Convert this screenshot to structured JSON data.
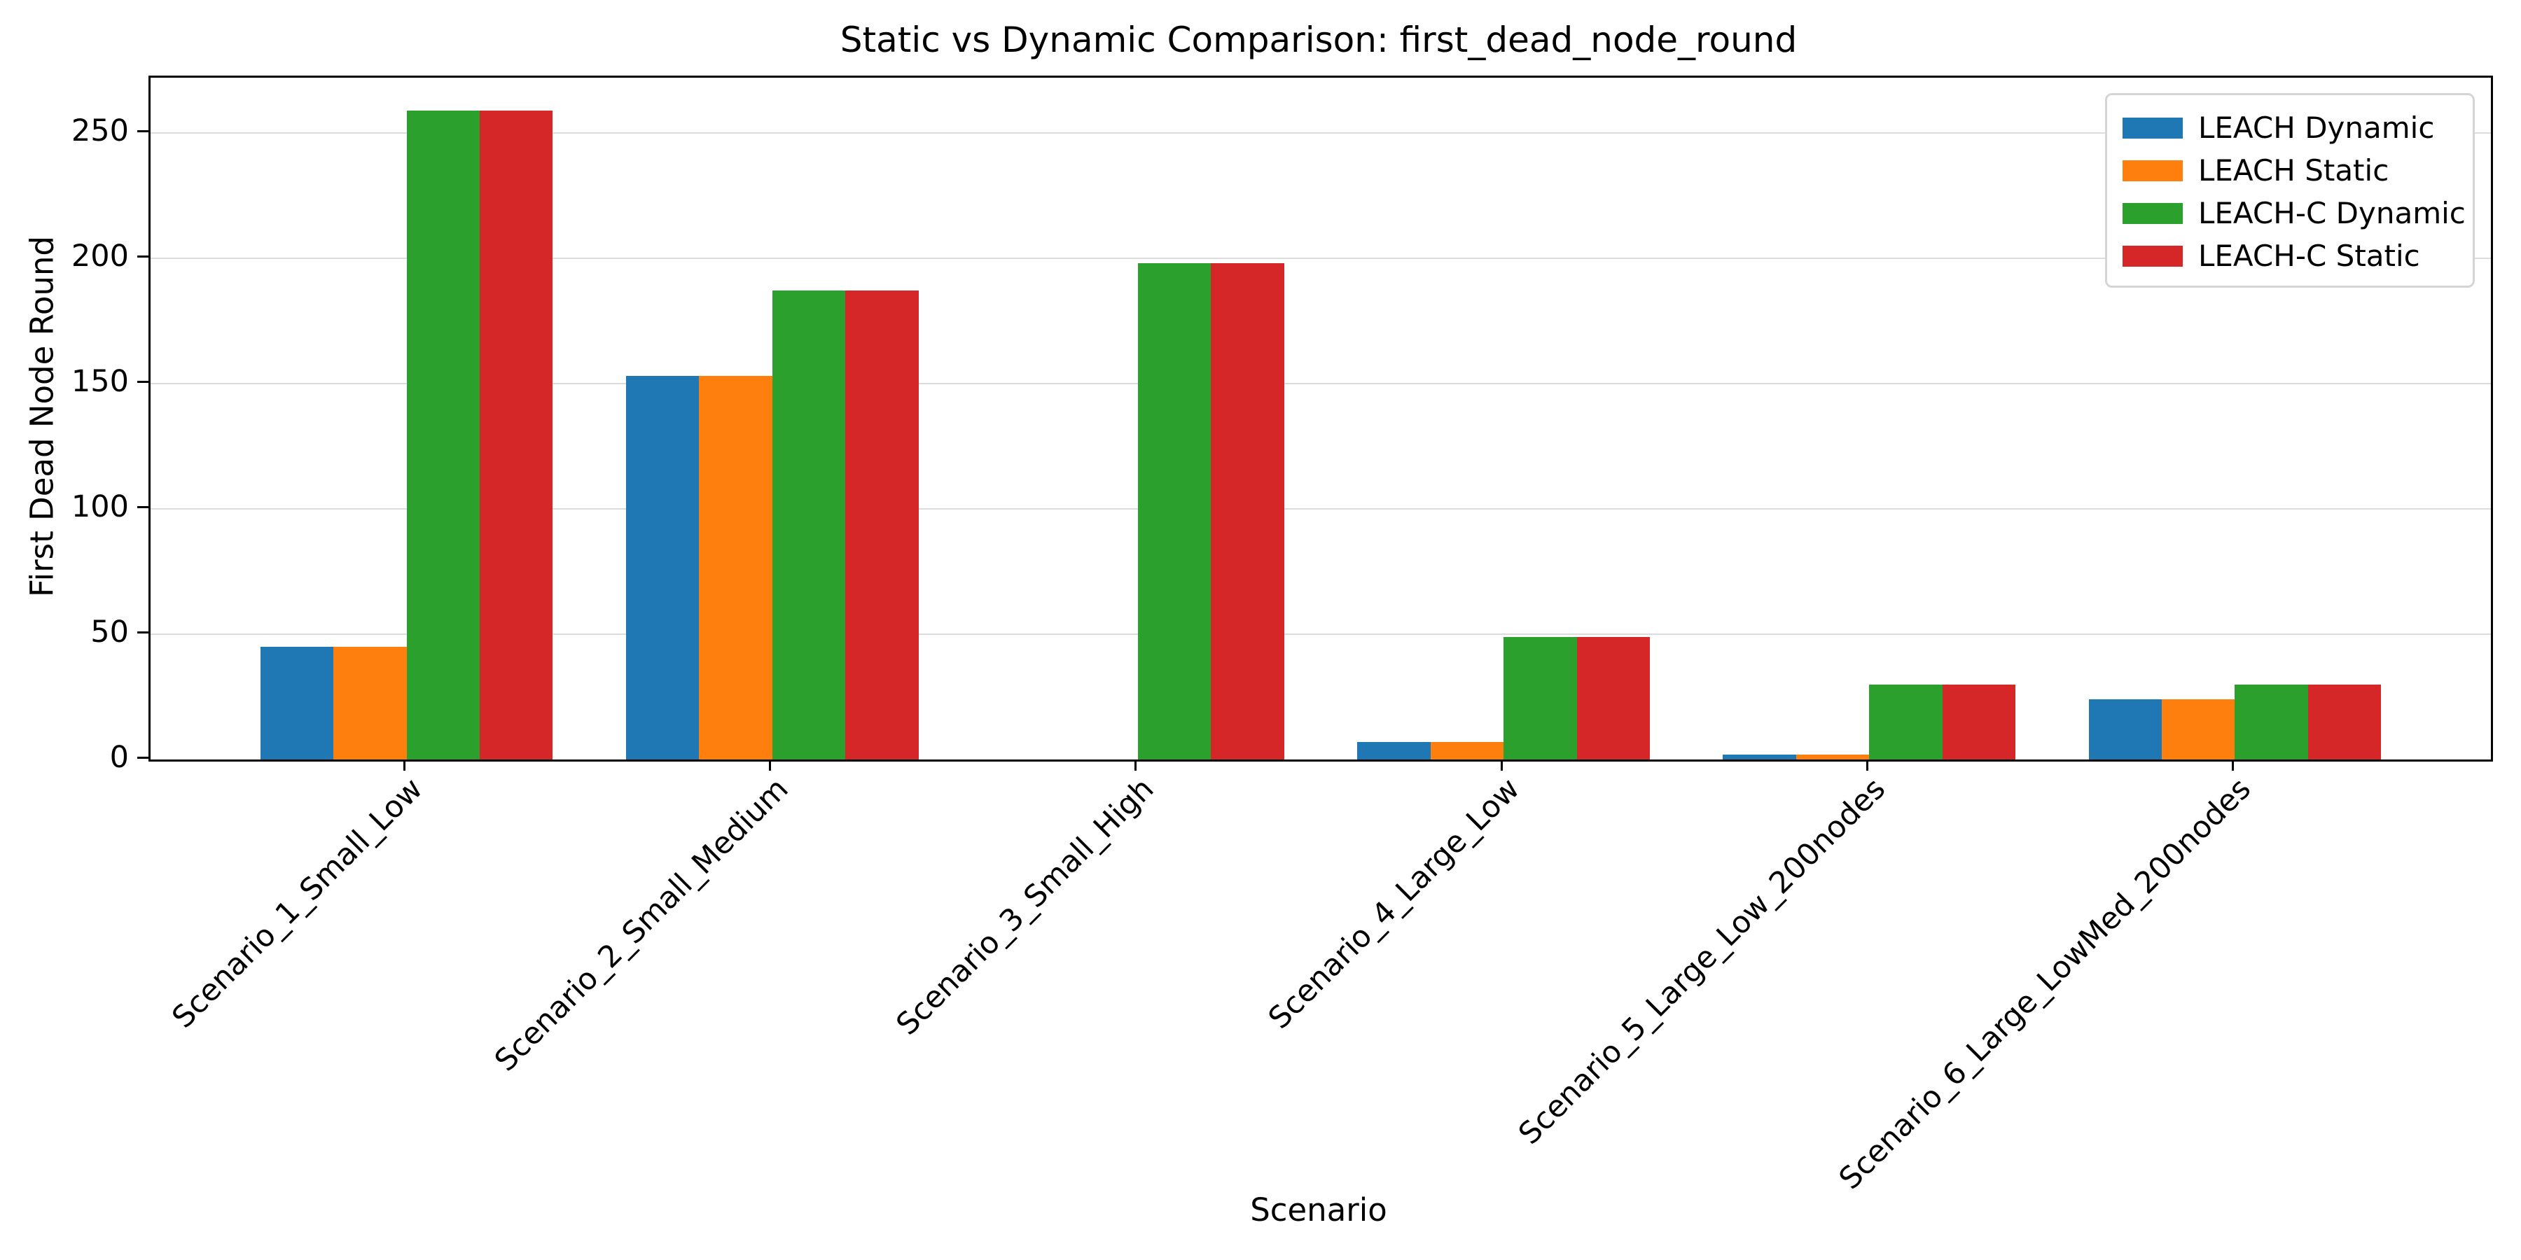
{
  "chart_data": {
    "type": "bar",
    "title": "Static vs Dynamic Comparison: first_dead_node_round",
    "xlabel": "Scenario",
    "ylabel": "First Dead Node Round",
    "categories": [
      "Scenario_1_Small_Low",
      "Scenario_2_Small_Medium",
      "Scenario_3_Small_High",
      "Scenario_4_Large_Low",
      "Scenario_5_Large_Low_200nodes",
      "Scenario_6_Large_LowMed_200nodes"
    ],
    "series": [
      {
        "name": "LEACH Dynamic",
        "color": "#1f77b4",
        "values": [
          45,
          153,
          0,
          7,
          2,
          24
        ]
      },
      {
        "name": "LEACH Static",
        "color": "#ff7f0e",
        "values": [
          45,
          153,
          0,
          7,
          2,
          24
        ]
      },
      {
        "name": "LEACH-C Dynamic",
        "color": "#2ca02c",
        "values": [
          259,
          187,
          198,
          49,
          30,
          30
        ]
      },
      {
        "name": "LEACH-C Static",
        "color": "#d62728",
        "values": [
          259,
          187,
          198,
          49,
          30,
          30
        ]
      }
    ],
    "yticks": [
      0,
      50,
      100,
      150,
      200,
      250
    ],
    "ylim": [
      0,
      272
    ],
    "grid": "y",
    "legend_position": "upper right",
    "bar_group_width_fraction": 0.8
  },
  "style": {
    "background": "#ffffff",
    "grid_color": "#dcdcdc",
    "axis_color": "#000000",
    "legend_border_color": "#d5d5d5"
  }
}
